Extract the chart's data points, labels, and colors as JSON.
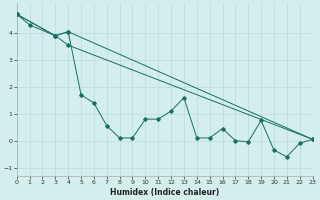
{
  "xlabel": "Humidex (Indice chaleur)",
  "bg_color": "#d4eeed",
  "grid_color": "#c0dede",
  "line_color": "#1a6e64",
  "series": [
    {
      "x": [
        0,
        1,
        3,
        4,
        23
      ],
      "y": [
        4.7,
        4.3,
        3.9,
        4.05,
        0.05
      ]
    },
    {
      "x": [
        0,
        3,
        4,
        23
      ],
      "y": [
        4.7,
        3.9,
        3.55,
        0.05
      ]
    },
    {
      "x": [
        0,
        3,
        4,
        5,
        6,
        7,
        8,
        9,
        10,
        11,
        12,
        13,
        14,
        15,
        16,
        17,
        18,
        19,
        20,
        21,
        22,
        23
      ],
      "y": [
        4.7,
        3.9,
        4.05,
        1.7,
        1.4,
        0.55,
        0.1,
        0.1,
        0.8,
        0.8,
        1.1,
        1.6,
        0.1,
        0.1,
        0.45,
        0.0,
        -0.05,
        0.75,
        -0.35,
        -0.6,
        -0.1,
        0.05
      ]
    }
  ],
  "xlim": [
    0,
    23
  ],
  "ylim": [
    -1.3,
    5.1
  ],
  "yticks": [
    -1,
    0,
    1,
    2,
    3,
    4
  ],
  "xticks": [
    0,
    1,
    2,
    3,
    4,
    5,
    6,
    7,
    8,
    9,
    10,
    11,
    12,
    13,
    14,
    15,
    16,
    17,
    18,
    19,
    20,
    21,
    22,
    23
  ]
}
